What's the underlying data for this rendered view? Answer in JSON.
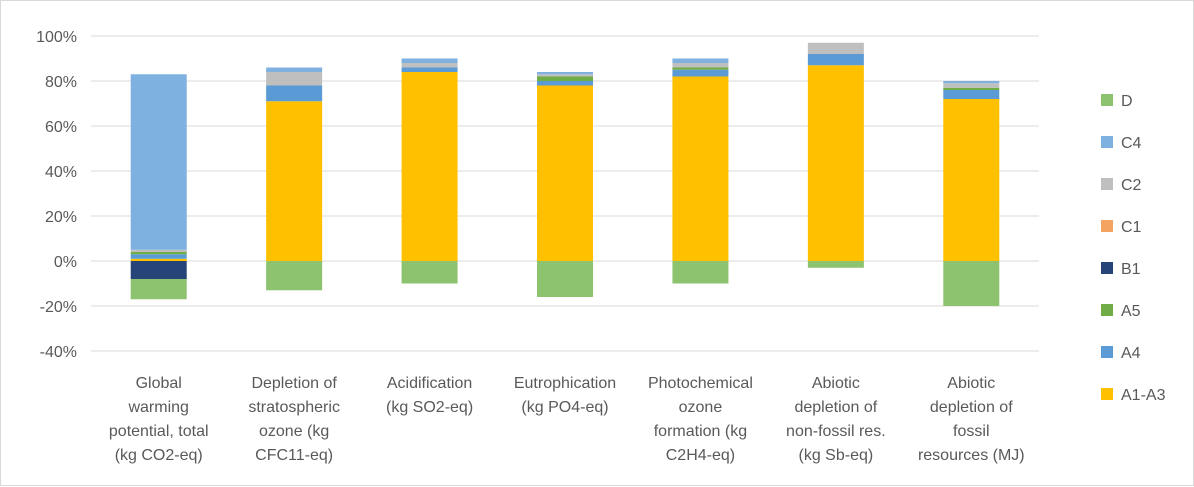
{
  "chart_data": {
    "type": "bar",
    "stacked": true,
    "categories": [
      "Global warming potential, total (kg CO2-eq)",
      "Depletion of stratospheric ozone (kg CFC11-eq)",
      "Acidification (kg SO2-eq)",
      "Eutrophication (kg PO4-eq)",
      "Photochemical ozone formation (kg C2H4-eq)",
      "Abiotic depletion of non-fossil res. (kg Sb-eq)",
      "Abiotic depletion of fossil resources (MJ)"
    ],
    "category_lines": [
      [
        "Global",
        "warming",
        "potential, total",
        "(kg CO2-eq)"
      ],
      [
        "Depletion of",
        "stratospheric",
        "ozone (kg",
        "CFC11-eq)"
      ],
      [
        "Acidification",
        "(kg SO2-eq)"
      ],
      [
        "Eutrophication",
        "(kg PO4-eq)"
      ],
      [
        "Photochemical",
        "ozone",
        "formation (kg",
        "C2H4-eq)"
      ],
      [
        "Abiotic",
        "depletion of",
        "non-fossil res.",
        "(kg Sb-eq)"
      ],
      [
        "Abiotic",
        "depletion of",
        "fossil",
        "resources (MJ)"
      ]
    ],
    "series": [
      {
        "name": "A1-A3",
        "color": "#FFC000",
        "values": [
          1,
          71,
          84,
          78,
          82,
          87,
          72
        ]
      },
      {
        "name": "A4",
        "color": "#5B9BD5",
        "values": [
          2,
          7,
          2,
          2,
          3,
          5,
          4
        ]
      },
      {
        "name": "A5",
        "color": "#70AD47",
        "values": [
          1,
          0,
          0,
          2,
          1,
          0,
          1
        ]
      },
      {
        "name": "B1",
        "color": "#264478",
        "values": [
          -8,
          0,
          0,
          0,
          0,
          0,
          0
        ]
      },
      {
        "name": "C1",
        "color": "#F4A460",
        "values": [
          0,
          0,
          0,
          0,
          0,
          0,
          0
        ]
      },
      {
        "name": "C2",
        "color": "#BFBFBF",
        "values": [
          1,
          6,
          2,
          1,
          2,
          5,
          2
        ]
      },
      {
        "name": "C4",
        "color": "#7FB1E0",
        "values": [
          78,
          2,
          2,
          1,
          2,
          0,
          1
        ]
      },
      {
        "name": "D",
        "color": "#8DC26F",
        "values": [
          -9,
          -13,
          -10,
          -16,
          -10,
          -3,
          -20
        ]
      }
    ],
    "legend_order": [
      "D",
      "C4",
      "C2",
      "C1",
      "B1",
      "A5",
      "A4",
      "A1-A3"
    ],
    "ylim": [
      -40,
      100
    ],
    "yticks": [
      100,
      80,
      60,
      40,
      20,
      0,
      -20,
      -40
    ],
    "ytick_labels": [
      "100%",
      "80%",
      "60%",
      "40%",
      "20%",
      "0%",
      "-20%",
      "-40%"
    ],
    "grid": true,
    "legend_position": "right",
    "title": "",
    "xlabel": "",
    "ylabel": ""
  }
}
